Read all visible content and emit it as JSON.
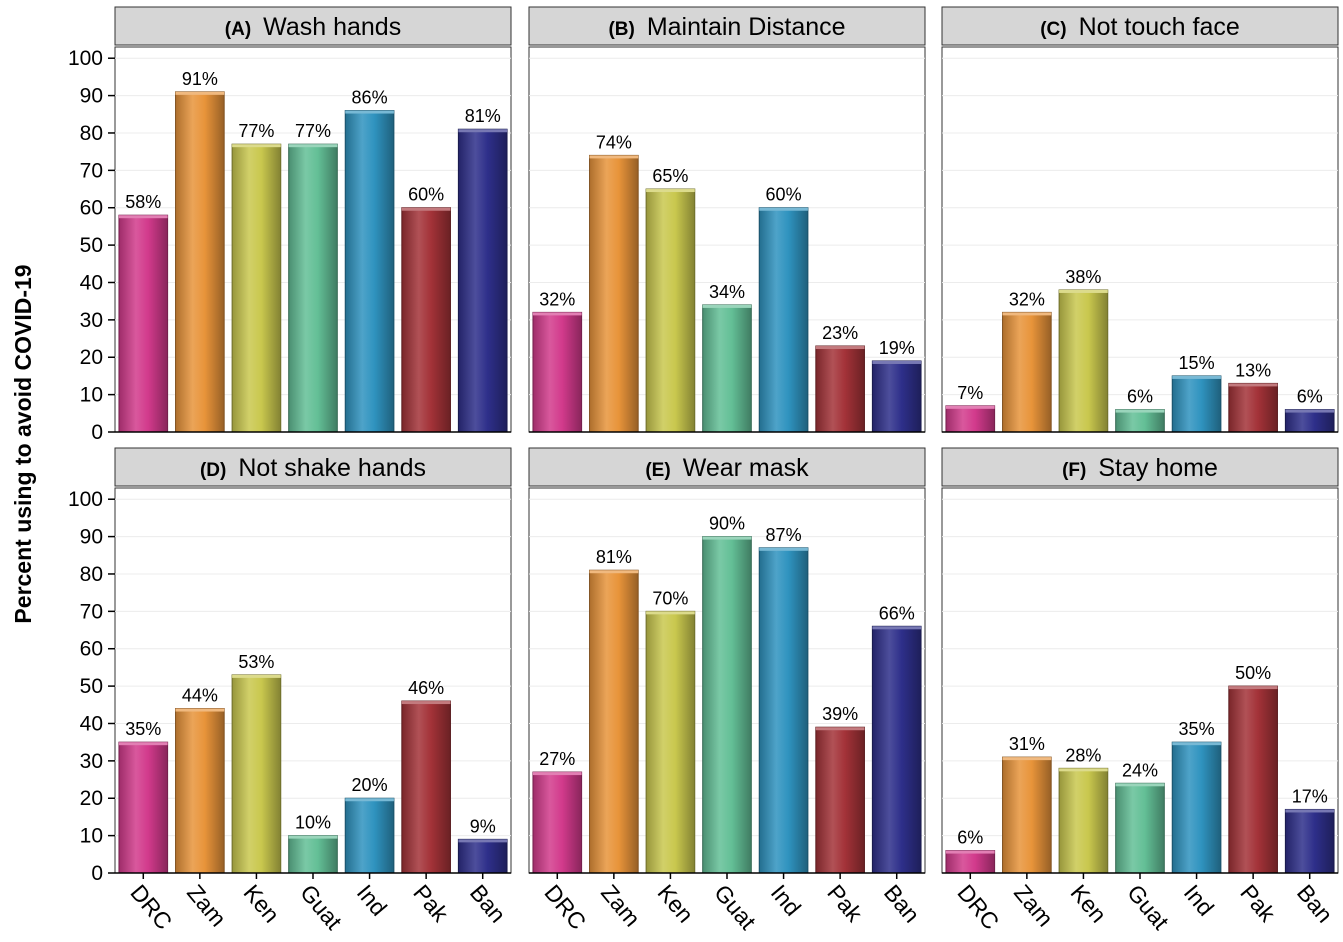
{
  "chart_data": {
    "type": "bar",
    "ylabel": "Percent using to avoid COVID-19",
    "ylim": [
      0,
      100
    ],
    "yticks": [
      0,
      10,
      20,
      30,
      40,
      50,
      60,
      70,
      80,
      90,
      100
    ],
    "categories": [
      "DRC",
      "Zam",
      "Ken",
      "Guat",
      "Ind",
      "Pak",
      "Ban"
    ],
    "category_colors": [
      "#d23a8c",
      "#e8943a",
      "#c9c84e",
      "#63bf96",
      "#2f93bf",
      "#a33238",
      "#2e2f8a"
    ],
    "value_suffix": "%",
    "grid": true,
    "panels": [
      {
        "letter": "(A)",
        "title": "Wash hands",
        "values": [
          58,
          91,
          77,
          77,
          86,
          60,
          81
        ]
      },
      {
        "letter": "(B)",
        "title": "Maintain Distance",
        "values": [
          32,
          74,
          65,
          34,
          60,
          23,
          19
        ]
      },
      {
        "letter": "(C)",
        "title": "Not touch face",
        "values": [
          7,
          32,
          38,
          6,
          15,
          13,
          6
        ]
      },
      {
        "letter": "(D)",
        "title": "Not shake hands",
        "values": [
          35,
          44,
          53,
          10,
          20,
          46,
          9
        ]
      },
      {
        "letter": "(E)",
        "title": "Wear mask",
        "values": [
          27,
          81,
          70,
          90,
          87,
          39,
          66
        ]
      },
      {
        "letter": "(F)",
        "title": "Stay home",
        "values": [
          6,
          31,
          28,
          24,
          35,
          50,
          17
        ]
      }
    ]
  }
}
